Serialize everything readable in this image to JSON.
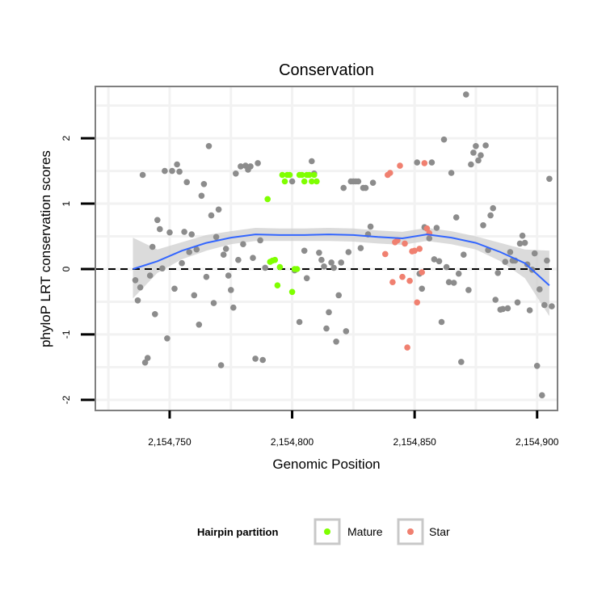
{
  "chart_data": {
    "type": "scatter",
    "title": "Conservation",
    "xlabel": "Genomic Position",
    "ylabel": "phyloP LRT conservation scores",
    "xlim": [
      2154720,
      2154908
    ],
    "ylim": [
      -2.15,
      2.78
    ],
    "x_ticks": [
      2154750,
      2154800,
      2154850,
      2154900
    ],
    "x_tick_labels": [
      "2,154,750",
      "2,154,800",
      "2,154,850",
      "2,154,900"
    ],
    "y_ticks": [
      -2,
      -1,
      0,
      1,
      2
    ],
    "y_tick_labels": [
      "-2",
      "-1",
      "0",
      "1",
      "2"
    ],
    "reference_line": {
      "y": 0,
      "style": "dashed"
    },
    "grid": true,
    "legend": {
      "title": "Hairpin partition",
      "position": "bottom",
      "entries": [
        {
          "label": "Mature",
          "color": "#7FFF00"
        },
        {
          "label": "Star",
          "color": "#F08070"
        }
      ]
    },
    "colors": {
      "other": "#8c8c8c",
      "mature": "#7FFF00",
      "star": "#F08070",
      "smooth": "#3366ff",
      "band": "#cfcfcf"
    },
    "series": [
      {
        "group": "other",
        "points": [
          [
            2154736,
            -0.17
          ],
          [
            2154737,
            -0.48
          ],
          [
            2154738,
            -0.28
          ],
          [
            2154739,
            1.44
          ],
          [
            2154740,
            -1.43
          ],
          [
            2154741,
            -1.36
          ],
          [
            2154742,
            -0.1
          ],
          [
            2154743,
            0.34
          ],
          [
            2154744,
            -0.69
          ],
          [
            2154745,
            0.75
          ],
          [
            2154746,
            0.61
          ],
          [
            2154747,
            0.01
          ],
          [
            2154748,
            1.5
          ],
          [
            2154749,
            -1.06
          ],
          [
            2154750,
            0.56
          ],
          [
            2154751,
            1.5
          ],
          [
            2154752,
            -0.3
          ],
          [
            2154753,
            1.6
          ],
          [
            2154754,
            1.49
          ],
          [
            2154755,
            0.09
          ],
          [
            2154756,
            0.57
          ],
          [
            2154757,
            1.33
          ],
          [
            2154758,
            0.26
          ],
          [
            2154759,
            0.53
          ],
          [
            2154760,
            -0.4
          ],
          [
            2154761,
            0.3
          ],
          [
            2154762,
            -0.85
          ],
          [
            2154763,
            1.12
          ],
          [
            2154764,
            1.3
          ],
          [
            2154765,
            -0.12
          ],
          [
            2154766,
            1.88
          ],
          [
            2154767,
            0.82
          ],
          [
            2154768,
            -0.52
          ],
          [
            2154769,
            0.49
          ],
          [
            2154770,
            0.91
          ],
          [
            2154771,
            -1.47
          ],
          [
            2154772,
            0.22
          ],
          [
            2154773,
            0.31
          ],
          [
            2154774,
            -0.1
          ],
          [
            2154775,
            -0.32
          ],
          [
            2154776,
            -0.59
          ],
          [
            2154777,
            1.46
          ],
          [
            2154778,
            0.14
          ],
          [
            2154779,
            1.57
          ],
          [
            2154780,
            0.38
          ],
          [
            2154781,
            1.58
          ],
          [
            2154782,
            1.52
          ],
          [
            2154783,
            1.57
          ],
          [
            2154784,
            0.17
          ],
          [
            2154785,
            -1.37
          ],
          [
            2154786,
            1.62
          ],
          [
            2154787,
            0.44
          ],
          [
            2154788,
            -1.39
          ],
          [
            2154789,
            0.02
          ],
          [
            2154800,
            1.34
          ],
          [
            2154801,
            -0.02
          ],
          [
            2154803,
            -0.81
          ],
          [
            2154805,
            0.28
          ],
          [
            2154806,
            -0.14
          ],
          [
            2154808,
            1.65
          ],
          [
            2154809,
            1.46
          ],
          [
            2154811,
            0.25
          ],
          [
            2154812,
            0.14
          ],
          [
            2154813,
            0.04
          ],
          [
            2154814,
            -0.91
          ],
          [
            2154815,
            -0.66
          ],
          [
            2154816,
            0.1
          ],
          [
            2154817,
            0.02
          ],
          [
            2154818,
            -1.11
          ],
          [
            2154819,
            -0.4
          ],
          [
            2154820,
            0.1
          ],
          [
            2154821,
            1.24
          ],
          [
            2154822,
            -0.95
          ],
          [
            2154823,
            0.26
          ],
          [
            2154824,
            1.34
          ],
          [
            2154825,
            1.34
          ],
          [
            2154826,
            1.34
          ],
          [
            2154827,
            1.34
          ],
          [
            2154828,
            0.32
          ],
          [
            2154829,
            1.24
          ],
          [
            2154830,
            1.24
          ],
          [
            2154831,
            0.53
          ],
          [
            2154832,
            0.65
          ],
          [
            2154833,
            1.32
          ],
          [
            2154851,
            1.63
          ],
          [
            2154852,
            -0.07
          ],
          [
            2154853,
            -0.3
          ],
          [
            2154854,
            0.64
          ],
          [
            2154855,
            0.62
          ],
          [
            2154856,
            0.47
          ],
          [
            2154857,
            1.63
          ],
          [
            2154858,
            0.15
          ],
          [
            2154859,
            0.63
          ],
          [
            2154860,
            0.12
          ],
          [
            2154861,
            -0.81
          ],
          [
            2154862,
            1.98
          ],
          [
            2154863,
            0.03
          ],
          [
            2154864,
            -0.2
          ],
          [
            2154865,
            1.47
          ],
          [
            2154866,
            -0.21
          ],
          [
            2154867,
            0.79
          ],
          [
            2154868,
            -0.07
          ],
          [
            2154869,
            -1.42
          ],
          [
            2154870,
            0.22
          ],
          [
            2154871,
            2.67
          ],
          [
            2154872,
            -0.32
          ],
          [
            2154873,
            1.6
          ],
          [
            2154874,
            1.78
          ],
          [
            2154875,
            1.88
          ],
          [
            2154876,
            1.66
          ],
          [
            2154877,
            1.74
          ],
          [
            2154878,
            0.67
          ],
          [
            2154879,
            1.89
          ],
          [
            2154880,
            0.29
          ],
          [
            2154881,
            0.82
          ],
          [
            2154882,
            0.93
          ],
          [
            2154883,
            -0.47
          ],
          [
            2154884,
            -0.06
          ],
          [
            2154885,
            -0.62
          ],
          [
            2154886,
            -0.61
          ],
          [
            2154887,
            0.11
          ],
          [
            2154888,
            -0.6
          ],
          [
            2154889,
            0.26
          ],
          [
            2154890,
            0.13
          ],
          [
            2154891,
            0.13
          ],
          [
            2154892,
            -0.51
          ],
          [
            2154893,
            0.39
          ],
          [
            2154894,
            0.51
          ],
          [
            2154895,
            0.4
          ],
          [
            2154896,
            0.07
          ],
          [
            2154897,
            -0.63
          ],
          [
            2154898,
            -0.01
          ],
          [
            2154899,
            0.24
          ],
          [
            2154900,
            -1.48
          ],
          [
            2154901,
            -0.31
          ],
          [
            2154902,
            -1.93
          ],
          [
            2154903,
            -0.55
          ],
          [
            2154904,
            0.13
          ],
          [
            2154905,
            1.38
          ],
          [
            2154906,
            -0.57
          ]
        ]
      },
      {
        "group": "mature",
        "points": [
          [
            2154790,
            1.07
          ],
          [
            2154791,
            0.11
          ],
          [
            2154792,
            0.13
          ],
          [
            2154793,
            0.14
          ],
          [
            2154794,
            -0.25
          ],
          [
            2154795,
            0.03
          ],
          [
            2154796,
            1.44
          ],
          [
            2154797,
            1.34
          ],
          [
            2154798,
            1.44
          ],
          [
            2154799,
            1.44
          ],
          [
            2154800,
            -0.35
          ],
          [
            2154801,
            0.0
          ],
          [
            2154802,
            0.0
          ],
          [
            2154803,
            1.44
          ],
          [
            2154804,
            1.44
          ],
          [
            2154805,
            1.34
          ],
          [
            2154806,
            1.44
          ],
          [
            2154807,
            1.44
          ],
          [
            2154808,
            1.34
          ],
          [
            2154809,
            1.44
          ],
          [
            2154810,
            1.34
          ]
        ]
      },
      {
        "group": "star",
        "points": [
          [
            2154838,
            0.23
          ],
          [
            2154839,
            1.44
          ],
          [
            2154840,
            1.47
          ],
          [
            2154841,
            -0.2
          ],
          [
            2154842,
            0.41
          ],
          [
            2154843,
            0.44
          ],
          [
            2154844,
            1.58
          ],
          [
            2154845,
            -0.12
          ],
          [
            2154846,
            0.39
          ],
          [
            2154847,
            -1.2
          ],
          [
            2154848,
            -0.18
          ],
          [
            2154849,
            0.27
          ],
          [
            2154850,
            0.28
          ],
          [
            2154851,
            -0.51
          ],
          [
            2154852,
            0.31
          ],
          [
            2154853,
            -0.05
          ],
          [
            2154854,
            1.62
          ],
          [
            2154855,
            0.62
          ],
          [
            2154856,
            0.55
          ]
        ]
      }
    ],
    "smooth": {
      "x": [
        2154735,
        2154745,
        2154755,
        2154765,
        2154775,
        2154785,
        2154795,
        2154805,
        2154815,
        2154825,
        2154835,
        2154845,
        2154855,
        2154865,
        2154875,
        2154885,
        2154895,
        2154905
      ],
      "y": [
        0.0,
        0.12,
        0.28,
        0.4,
        0.48,
        0.53,
        0.52,
        0.52,
        0.53,
        0.52,
        0.49,
        0.47,
        0.53,
        0.48,
        0.4,
        0.26,
        0.09,
        -0.25
      ],
      "lower": [
        -0.45,
        -0.06,
        0.15,
        0.28,
        0.38,
        0.43,
        0.43,
        0.43,
        0.43,
        0.42,
        0.39,
        0.37,
        0.43,
        0.38,
        0.3,
        0.12,
        -0.14,
        -0.72
      ],
      "upper": [
        0.48,
        0.3,
        0.41,
        0.52,
        0.58,
        0.63,
        0.62,
        0.62,
        0.63,
        0.62,
        0.59,
        0.57,
        0.63,
        0.58,
        0.5,
        0.4,
        0.3,
        0.28
      ]
    }
  }
}
